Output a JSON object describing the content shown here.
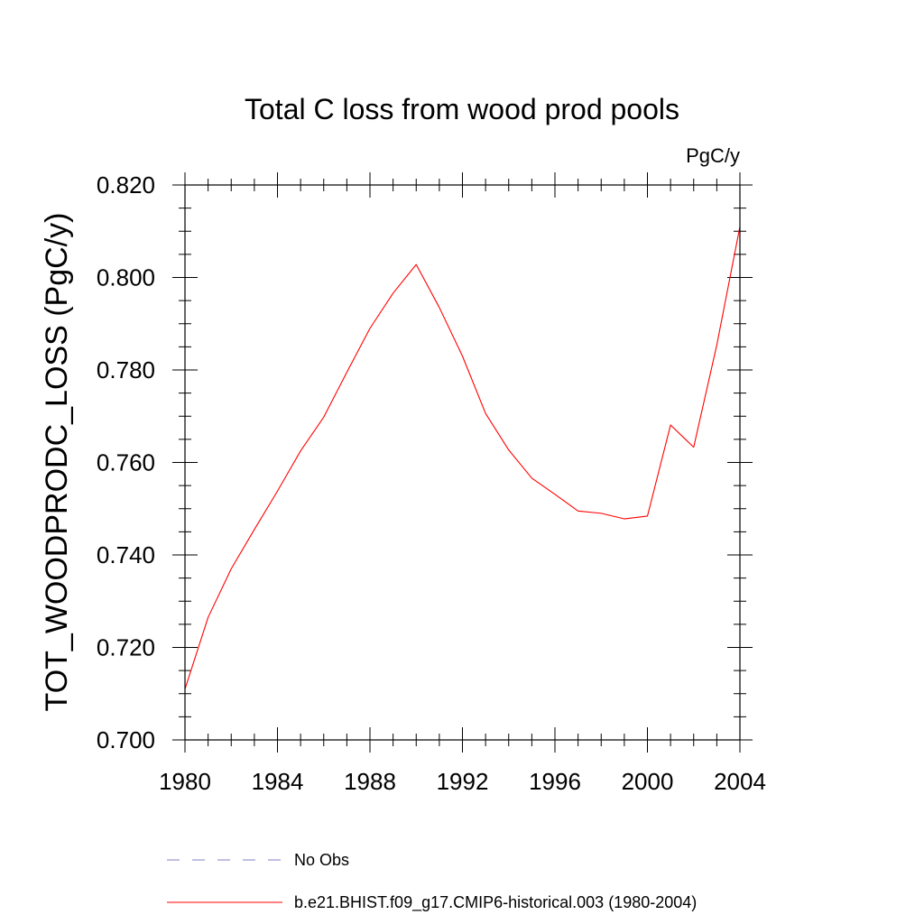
{
  "chart_data": {
    "type": "line",
    "title": "Total C loss from wood prod pools",
    "units_label": "PgC/y",
    "ylabel": "TOT_WOODPRODC_LOSS  (PgC/y)",
    "xlabel": "",
    "xlim": [
      1980,
      2004
    ],
    "ylim": [
      0.7,
      0.82
    ],
    "x_ticks": [
      "1980",
      "1984",
      "1988",
      "1992",
      "1996",
      "2000",
      "2004"
    ],
    "y_ticks": [
      "0.700",
      "0.720",
      "0.740",
      "0.760",
      "0.780",
      "0.800",
      "0.820"
    ],
    "series": [
      {
        "name": "b.e21.BHIST.f09_g17.CMIP6-historical.003 (1980-2004)",
        "color": "#ff0000",
        "x": [
          1980,
          1981,
          1982,
          1983,
          1984,
          1985,
          1986,
          1987,
          1988,
          1989,
          1990,
          1991,
          1992,
          1993,
          1994,
          1995,
          1996,
          1997,
          1998,
          1999,
          2000,
          2001,
          2002,
          2003,
          2004
        ],
        "values": [
          0.711,
          0.7265,
          0.737,
          0.7455,
          0.7538,
          0.7625,
          0.7698,
          0.7795,
          0.789,
          0.7966,
          0.8028,
          0.7935,
          0.783,
          0.7706,
          0.7627,
          0.7566,
          0.7531,
          0.7495,
          0.749,
          0.7478,
          0.7484,
          0.7681,
          0.7633,
          0.7854,
          0.811
        ]
      }
    ],
    "legend": {
      "placement": "bottom",
      "entries": [
        {
          "label": "No Obs",
          "color": "#8080c8",
          "style": "dashed"
        },
        {
          "label": "b.e21.BHIST.f09_g17.CMIP6-historical.003 (1980-2004)",
          "color": "#ff0000",
          "style": "solid"
        }
      ]
    }
  }
}
